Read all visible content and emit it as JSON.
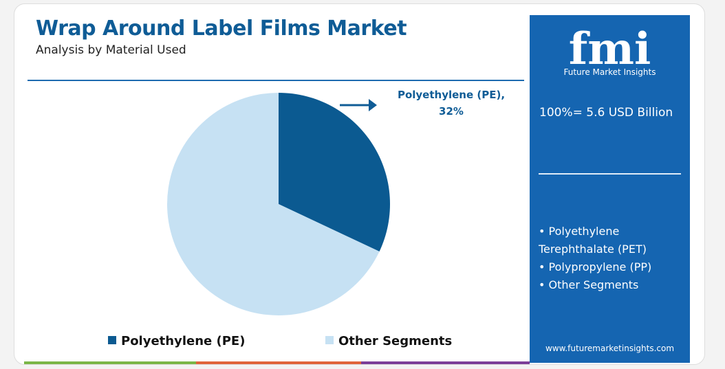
{
  "chart_data": {
    "type": "pie",
    "title": "Wrap Around Label Films Market",
    "subtitle": "Analysis by Material Used",
    "categories": [
      "Polyethylene (PE)",
      "Other Segments"
    ],
    "values": [
      32,
      68
    ],
    "value_labels": [
      "Polyethylene (PE), 32%",
      null
    ],
    "colors": [
      "#0b5a91",
      "#c6e1f3"
    ]
  },
  "panel": {
    "brand": "fmi",
    "brand_name": "Future Market Insights",
    "total": "100%= 5.6 USD Billion",
    "segments": [
      "Polyethylene Terephthalate (PET)",
      "Polypropylene (PP)",
      "Other Segments"
    ],
    "website": "www.futuremarketinsights.com"
  }
}
